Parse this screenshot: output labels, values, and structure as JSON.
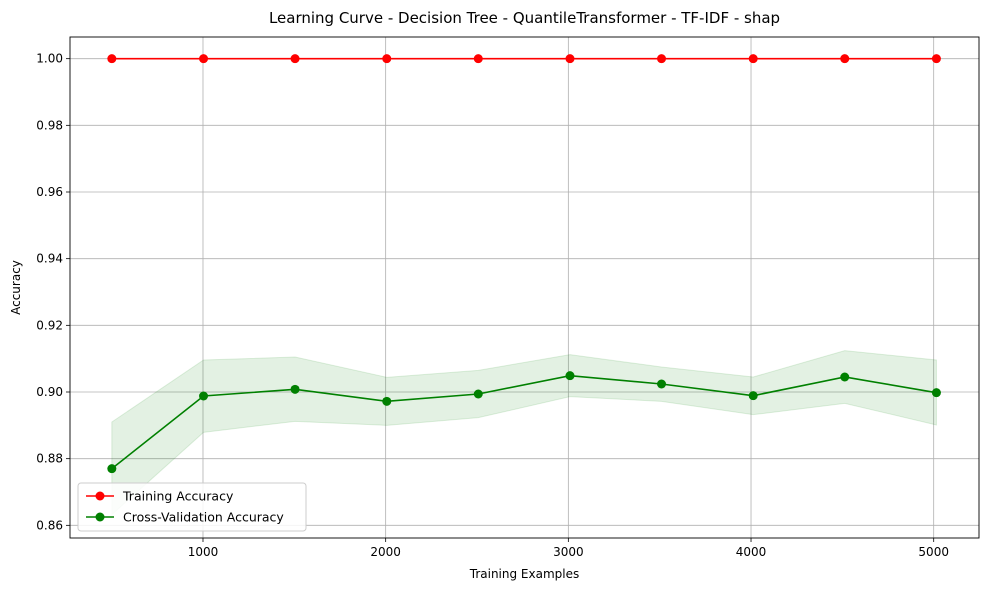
{
  "chart_data": {
    "type": "line",
    "title": "Learning Curve - Decision Tree - QuantileTransformer - TF-IDF - shap",
    "xlabel": "Training Examples",
    "ylabel": "Accuracy",
    "xlim": [
      272,
      5248
    ],
    "ylim": [
      0.8562,
      1.0065
    ],
    "xticks": [
      1000,
      2000,
      3000,
      4000,
      5000
    ],
    "xtick_labels": [
      "1000",
      "2000",
      "3000",
      "4000",
      "5000"
    ],
    "yticks": [
      0.86,
      0.88,
      0.9,
      0.92,
      0.94,
      0.96,
      0.98,
      1.0
    ],
    "ytick_labels": [
      "0.86",
      "0.88",
      "0.90",
      "0.92",
      "0.94",
      "0.96",
      "0.98",
      "1.00"
    ],
    "grid": true,
    "legend_position": "lower-left",
    "x": [
      501,
      1003,
      1504,
      2006,
      2507,
      3009,
      3510,
      4012,
      4513,
      5015
    ],
    "series": [
      {
        "name": "Training Accuracy",
        "color": "#ff0000",
        "marker": "circle",
        "values": [
          1.0,
          1.0,
          1.0,
          1.0,
          1.0,
          1.0,
          1.0,
          1.0,
          1.0,
          1.0
        ]
      },
      {
        "name": "Cross-Validation Accuracy",
        "color": "#008000",
        "marker": "circle",
        "values": [
          0.877,
          0.8988,
          0.9008,
          0.8972,
          0.8994,
          0.9049,
          0.9024,
          0.8989,
          0.9045,
          0.8998
        ],
        "band_upper": [
          0.891,
          0.9096,
          0.9105,
          0.9044,
          0.9065,
          0.9112,
          0.9075,
          0.9045,
          0.9124,
          0.9096
        ],
        "band_lower": [
          0.8632,
          0.8879,
          0.8912,
          0.89,
          0.8923,
          0.8986,
          0.8972,
          0.8932,
          0.8966,
          0.8901
        ],
        "band_color": "#008000"
      }
    ]
  }
}
